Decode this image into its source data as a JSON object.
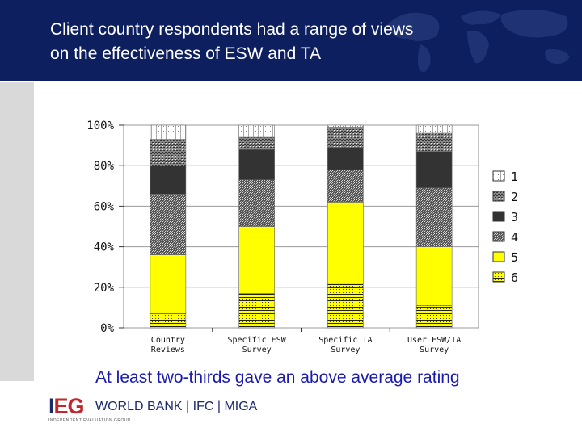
{
  "slide": {
    "title_line1": "Client country respondents had a range of views",
    "title_line2": "on the effectiveness of ESW and TA",
    "caption": "At least two-thirds gave an above average rating"
  },
  "logo": {
    "ieg_part1": "I",
    "ieg_part2": "EG",
    "org_text": "WORLD BANK | IFC | MIGA",
    "subtitle": "INDEPENDENT EVALUATION GROUP"
  },
  "colors": {
    "header_bg": "#0d1f5e",
    "caption": "#1a1ab0",
    "yellow": "#ffff00",
    "dark": "#333333"
  },
  "chart_data": {
    "type": "bar",
    "stacked": true,
    "categories": [
      [
        "Country",
        "Reviews"
      ],
      [
        "Specific ESW",
        "Survey"
      ],
      [
        "Specific TA",
        "Survey"
      ],
      [
        "User ESW/TA",
        "Survey"
      ]
    ],
    "y_ticks": [
      "0%",
      "20%",
      "40%",
      "60%",
      "80%",
      "100%"
    ],
    "ylim": [
      0,
      100
    ],
    "legend_position": "right",
    "series": [
      {
        "name": "6",
        "pattern": "yellow-hatch",
        "values": [
          7,
          17,
          22,
          11
        ]
      },
      {
        "name": "5",
        "pattern": "yellow",
        "values": [
          29,
          33,
          40,
          29
        ]
      },
      {
        "name": "4",
        "pattern": "dense-check",
        "values": [
          30,
          23,
          16,
          29
        ]
      },
      {
        "name": "3",
        "pattern": "dark",
        "values": [
          14,
          15,
          11,
          18
        ]
      },
      {
        "name": "2",
        "pattern": "medium-check",
        "values": [
          13,
          6,
          10,
          9
        ]
      },
      {
        "name": "1",
        "pattern": "dotted",
        "values": [
          7,
          6,
          1,
          4
        ]
      }
    ],
    "legend_order": [
      "1",
      "2",
      "3",
      "4",
      "5",
      "6"
    ]
  }
}
